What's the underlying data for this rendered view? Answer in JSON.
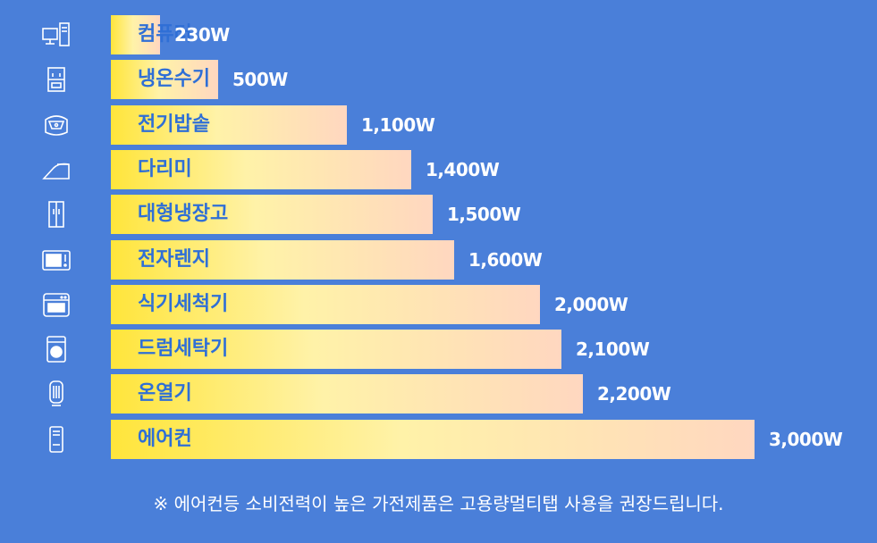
{
  "chart_data": {
    "type": "bar",
    "orientation": "horizontal",
    "categories": [
      "컴퓨터",
      "냉온수기",
      "전기밥솥",
      "다리미",
      "대형냉장고",
      "전자렌지",
      "식기세척기",
      "드럼세탁기",
      "온열기",
      "에어컨"
    ],
    "values": [
      230,
      500,
      1100,
      1400,
      1500,
      1600,
      2000,
      2100,
      2200,
      3000
    ],
    "value_labels": [
      "230W",
      "500W",
      "1,100W",
      "1,400W",
      "1,500W",
      "1,600W",
      "2,000W",
      "2,100W",
      "2,200W",
      "3,000W"
    ],
    "icons": [
      "computer-icon",
      "water-dispenser-icon",
      "rice-cooker-icon",
      "iron-icon",
      "refrigerator-icon",
      "microwave-icon",
      "dishwasher-icon",
      "washing-machine-icon",
      "heater-icon",
      "air-conditioner-icon"
    ],
    "xlim": [
      0,
      3000
    ],
    "colors": {
      "background": "#4a7fd9",
      "bar_start": "#ffe53b",
      "bar_end": "#ffd7c0",
      "category_text": "#2f6fd6",
      "value_text": "#ffffff"
    }
  },
  "footnote": "※ 에어컨등 소비전력이 높은 가전제품은 고용량멀티탭 사용을 권장드립니다."
}
